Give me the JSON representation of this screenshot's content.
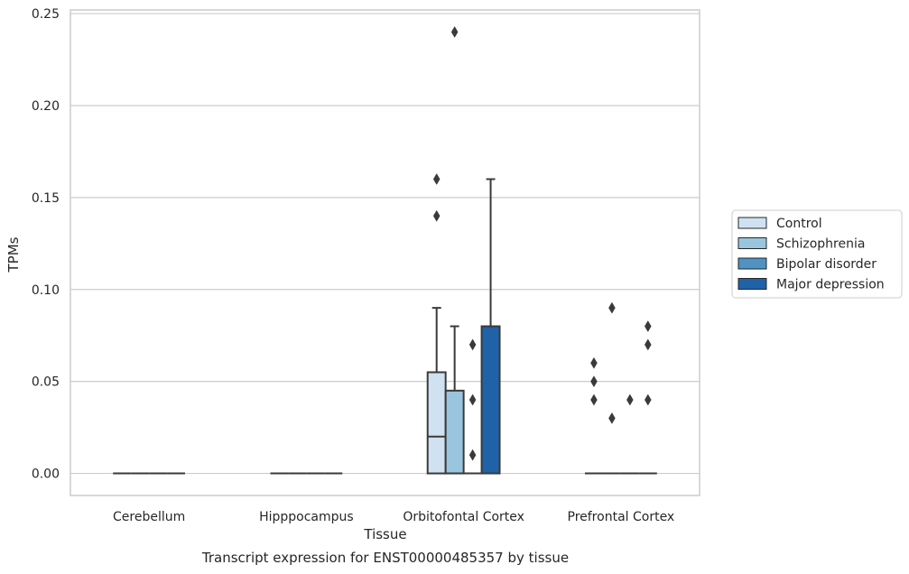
{
  "chart_data": {
    "type": "box",
    "title": "",
    "caption": "Transcript expression for ENST00000485357 by tissue",
    "xlabel": "Tissue",
    "ylabel": "TPMs",
    "ylim": [
      -0.012,
      0.252
    ],
    "yticks": [
      0.0,
      0.05,
      0.1,
      0.15,
      0.2,
      0.25
    ],
    "ytick_labels": [
      "0.00",
      "0.05",
      "0.10",
      "0.15",
      "0.20",
      "0.25"
    ],
    "categories": [
      "Cerebellum",
      "Hipppocampus",
      "Orbitofontal Cortex",
      "Prefrontal Cortex"
    ],
    "grid": "horizontal",
    "legend_position": "right",
    "series": [
      {
        "name": "Control",
        "color": "#d0e1f2",
        "boxes": [
          {
            "q1": 0,
            "median": 0,
            "q3": 0,
            "whislo": 0,
            "whishi": 0,
            "fliers": []
          },
          {
            "q1": 0,
            "median": 0,
            "q3": 0,
            "whislo": 0,
            "whishi": 0,
            "fliers": []
          },
          {
            "q1": 0,
            "median": 0.02,
            "q3": 0.055,
            "whislo": 0,
            "whishi": 0.09,
            "fliers": [
              0.14,
              0.16
            ]
          },
          {
            "q1": 0,
            "median": 0,
            "q3": 0,
            "whislo": 0,
            "whishi": 0,
            "fliers": [
              0.04,
              0.05,
              0.06
            ]
          }
        ]
      },
      {
        "name": "Schizophrenia",
        "color": "#9ac5de",
        "boxes": [
          {
            "q1": 0,
            "median": 0,
            "q3": 0,
            "whislo": 0,
            "whishi": 0,
            "fliers": []
          },
          {
            "q1": 0,
            "median": 0,
            "q3": 0,
            "whislo": 0,
            "whishi": 0,
            "fliers": []
          },
          {
            "q1": 0,
            "median": 0,
            "q3": 0.045,
            "whislo": 0,
            "whishi": 0.08,
            "fliers": [
              0.24
            ]
          },
          {
            "q1": 0,
            "median": 0,
            "q3": 0,
            "whislo": 0,
            "whishi": 0,
            "fliers": [
              0.03,
              0.09
            ]
          }
        ]
      },
      {
        "name": "Bipolar disorder",
        "color": "#4f92c4",
        "boxes": [
          {
            "q1": 0,
            "median": 0,
            "q3": 0,
            "whislo": 0,
            "whishi": 0,
            "fliers": []
          },
          {
            "q1": 0,
            "median": 0,
            "q3": 0,
            "whislo": 0,
            "whishi": 0,
            "fliers": []
          },
          {
            "q1": 0,
            "median": 0,
            "q3": 0,
            "whislo": 0,
            "whishi": 0,
            "fliers": [
              0.01,
              0.04,
              0.07
            ]
          },
          {
            "q1": 0,
            "median": 0,
            "q3": 0,
            "whislo": 0,
            "whishi": 0,
            "fliers": [
              0.04
            ]
          }
        ]
      },
      {
        "name": "Major depression",
        "color": "#1f62a7",
        "boxes": [
          {
            "q1": 0,
            "median": 0,
            "q3": 0,
            "whislo": 0,
            "whishi": 0,
            "fliers": []
          },
          {
            "q1": 0,
            "median": 0,
            "q3": 0,
            "whislo": 0,
            "whishi": 0,
            "fliers": []
          },
          {
            "q1": 0,
            "median": 0,
            "q3": 0.08,
            "whislo": 0,
            "whishi": 0.16,
            "fliers": []
          },
          {
            "q1": 0,
            "median": 0,
            "q3": 0,
            "whislo": 0,
            "whishi": 0,
            "fliers": [
              0.04,
              0.07,
              0.08
            ]
          }
        ]
      }
    ]
  }
}
